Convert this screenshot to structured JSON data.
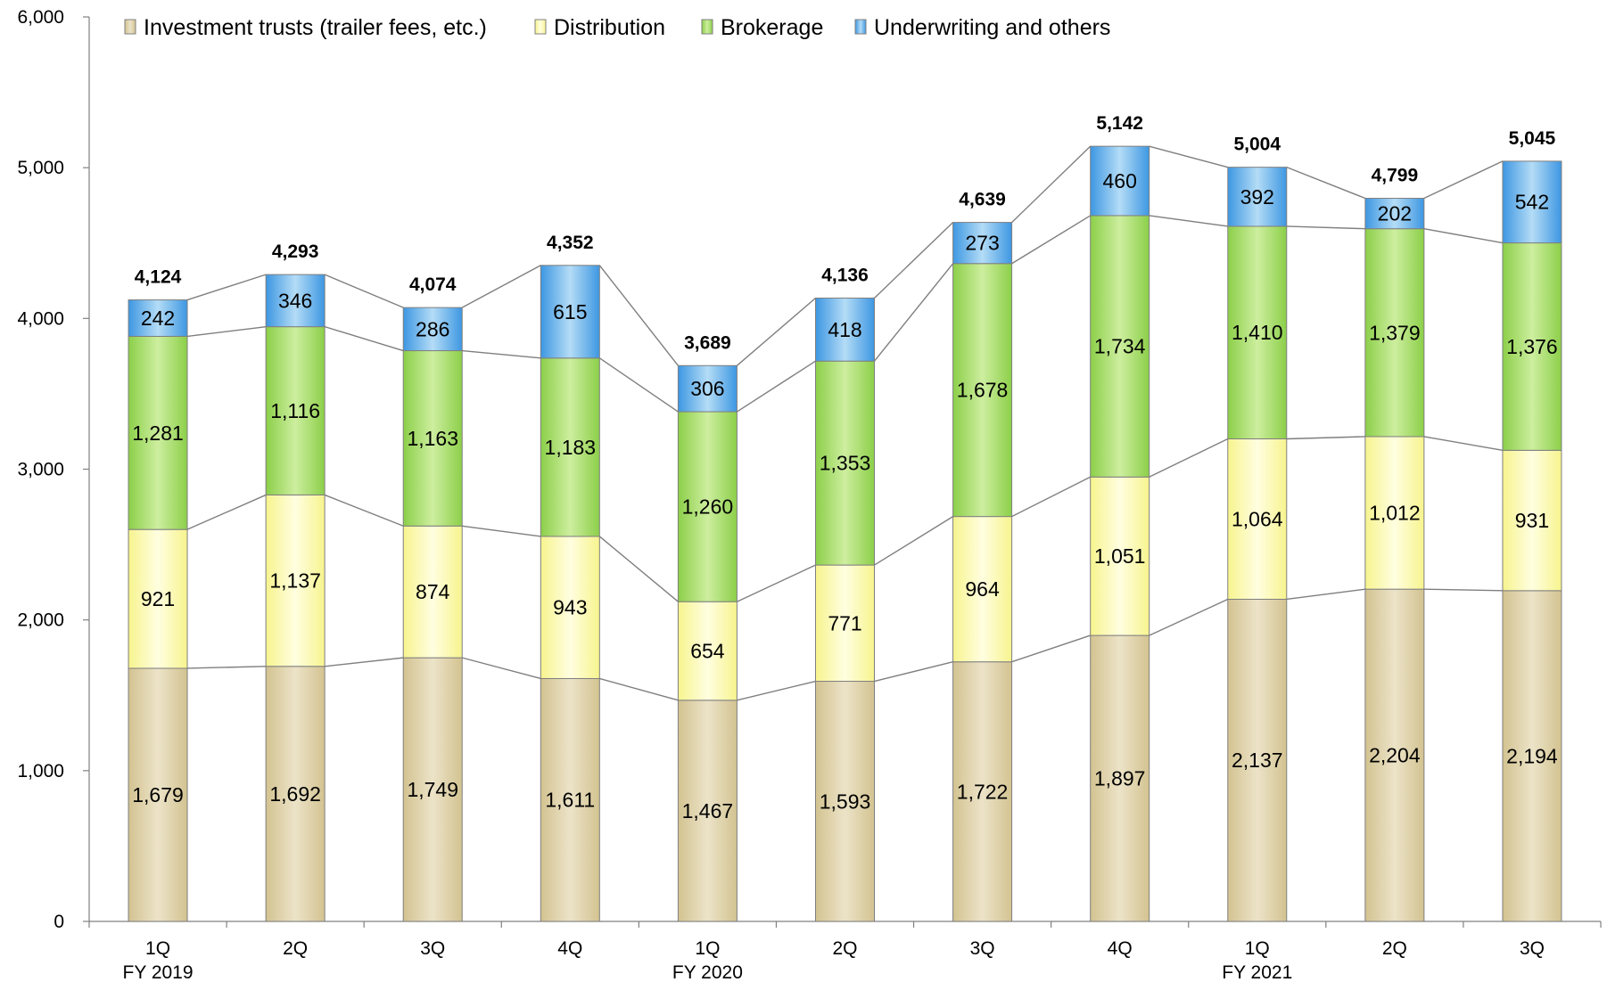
{
  "chart_data": {
    "type": "bar",
    "stacked": true,
    "categories": [
      "1Q",
      "2Q",
      "3Q",
      "4Q",
      "1Q",
      "2Q",
      "3Q",
      "4Q",
      "1Q",
      "2Q",
      "3Q"
    ],
    "fiscal_year_labels": [
      "FY 2019",
      "",
      "",
      "",
      "FY 2020",
      "",
      "",
      "",
      "FY 2021",
      "",
      ""
    ],
    "series": [
      {
        "name": "Investment trusts (trailer fees, etc.)",
        "color": "#ddd0a8",
        "values": [
          1679,
          1692,
          1749,
          1611,
          1467,
          1593,
          1722,
          1897,
          2137,
          2204,
          2194
        ]
      },
      {
        "name": "Distribution",
        "color": "#fdfbb0",
        "values": [
          921,
          1137,
          874,
          943,
          654,
          771,
          964,
          1051,
          1064,
          1012,
          931
        ]
      },
      {
        "name": "Brokerage",
        "color": "#a3d86a",
        "values": [
          1281,
          1116,
          1163,
          1183,
          1260,
          1353,
          1678,
          1734,
          1410,
          1379,
          1376
        ]
      },
      {
        "name": "Underwriting and others",
        "color": "#52a8ea",
        "values": [
          242,
          346,
          286,
          615,
          306,
          418,
          273,
          460,
          392,
          202,
          542
        ]
      }
    ],
    "totals": [
      4124,
      4293,
      4074,
      4352,
      3689,
      4136,
      4639,
      5142,
      5004,
      4799,
      5045
    ],
    "yticks": [
      "0",
      "1,000",
      "2,000",
      "3,000",
      "4,000",
      "5,000",
      "6,000"
    ],
    "ylim": [
      0,
      6000
    ],
    "xlabel": "",
    "ylabel": "",
    "title": "",
    "legend_position": "top",
    "connector_lines": true
  }
}
